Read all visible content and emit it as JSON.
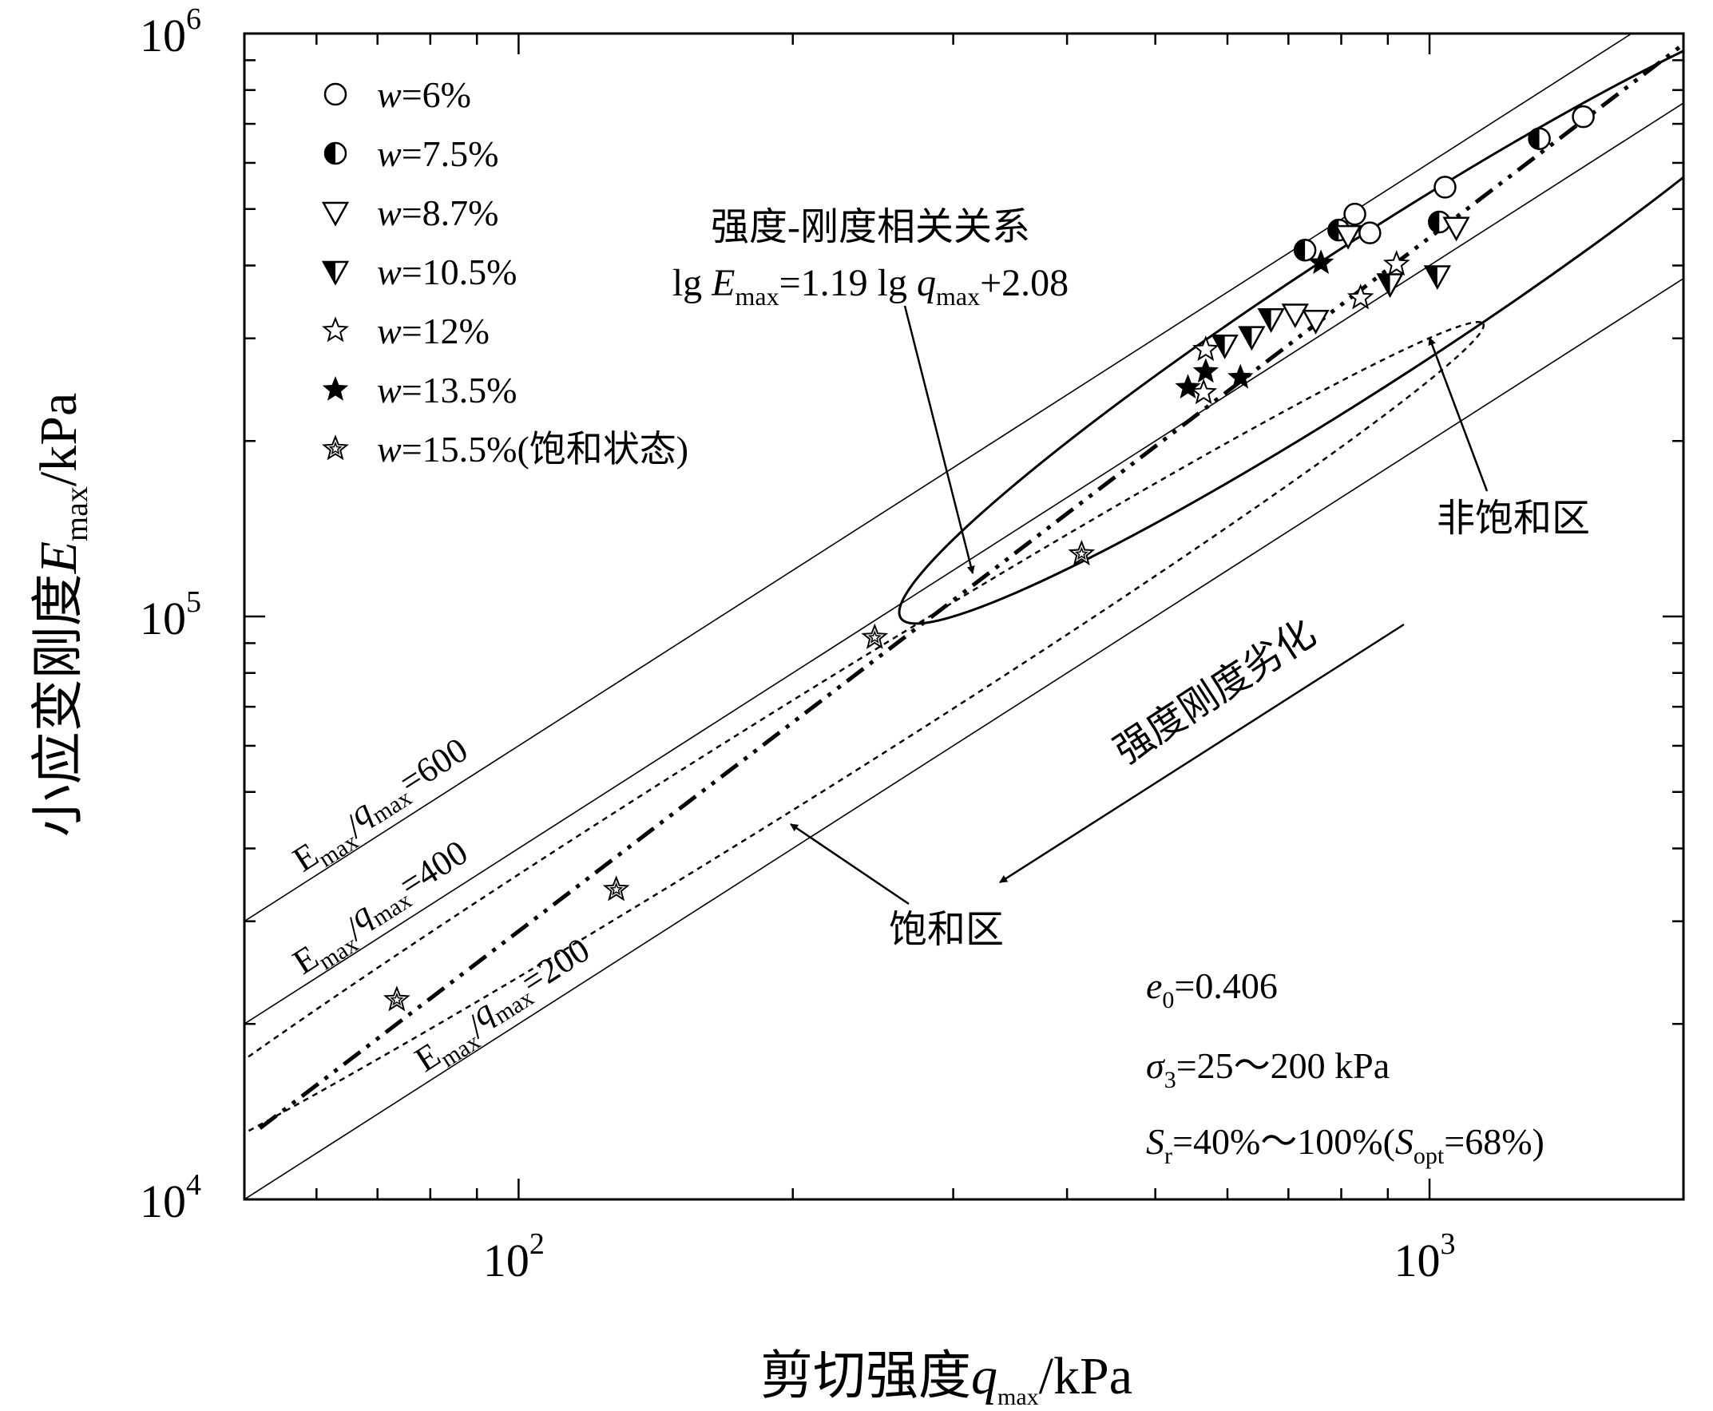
{
  "chart_data": {
    "type": "scatter",
    "x_scale": "log",
    "y_scale": "log",
    "xlim": [
      50,
      1900
    ],
    "ylim": [
      10000,
      1000000
    ],
    "xlabel": "剪切强度q_max/kPa",
    "ylabel": "小应变刚度E_max/kPa",
    "x_ticks": [
      {
        "value": 100,
        "base": "10",
        "exp": "2"
      },
      {
        "value": 1000,
        "base": "10",
        "exp": "3"
      }
    ],
    "y_ticks": [
      {
        "value": 10000,
        "base": "10",
        "exp": "4"
      },
      {
        "value": 100000,
        "base": "10",
        "exp": "5"
      },
      {
        "value": 1000000,
        "base": "10",
        "exp": "6"
      }
    ],
    "legend_position": "top-left",
    "series": [
      {
        "name": "w=6%",
        "marker": "circle-open",
        "points": [
          [
            828,
            490000
          ],
          [
            860,
            455000
          ],
          [
            1040,
            545000
          ],
          [
            1475,
            720000
          ]
        ]
      },
      {
        "name": "w=7.5%",
        "marker": "circle-half",
        "points": [
          [
            730,
            425000
          ],
          [
            795,
            460000
          ],
          [
            1025,
            475000
          ],
          [
            1320,
            660000
          ]
        ]
      },
      {
        "name": "w=8.7%",
        "marker": "triangle-down-open",
        "points": [
          [
            712,
            330000
          ],
          [
            750,
            322000
          ],
          [
            814,
            450000
          ],
          [
            1070,
            465000
          ]
        ]
      },
      {
        "name": "w=10.5%",
        "marker": "triangle-down-half",
        "points": [
          [
            596,
            292000
          ],
          [
            638,
            302000
          ],
          [
            670,
            324000
          ],
          [
            905,
            372000
          ],
          [
            1020,
            384000
          ]
        ]
      },
      {
        "name": "w=12%",
        "marker": "star-open",
        "points": [
          [
            568,
            287000
          ],
          [
            565,
            242000
          ],
          [
            840,
            352000
          ],
          [
            920,
            402000
          ]
        ]
      },
      {
        "name": "w=13.5%",
        "marker": "star-filled",
        "points": [
          [
            543,
            247000
          ],
          [
            568,
            263000
          ],
          [
            620,
            257000
          ],
          [
            760,
            404000
          ]
        ]
      },
      {
        "name": "w=15.5%(饱和状态)",
        "marker": "star-crossed",
        "points": [
          [
            73.5,
            22000
          ],
          [
            128,
            34000
          ],
          [
            246,
            92000
          ],
          [
            415,
            128000
          ]
        ]
      }
    ],
    "fit_line": {
      "label": "lg E_max=1.19 lg q_max+2.08",
      "slope": 1.19,
      "intercept": 2.08,
      "x_range": [
        52,
        1880
      ]
    },
    "reference_lines": [
      {
        "ratio": 600,
        "label_num": "=600",
        "label_pos_x": 72
      },
      {
        "ratio": 400,
        "label_num": "=400",
        "label_pos_x": 72
      },
      {
        "ratio": 200,
        "label_num": "=200",
        "label_pos_x": 98
      }
    ],
    "regions": [
      {
        "name": "非饱和区",
        "style": "solid",
        "cx": 870,
        "cy": 335000,
        "rx_dec": 0.62,
        "ry_dec": 0.12,
        "angle_deg": 33
      },
      {
        "name": "饱和区",
        "style": "dashed",
        "cx": 190,
        "cy": 55000,
        "rx_dec": 0.92,
        "ry_dec": 0.08,
        "angle_deg": 32
      }
    ],
    "annotations": {
      "relation_title": "强度-刚度相关关系",
      "degradation": "强度刚度劣化"
    },
    "params": {
      "e0": "=0.406",
      "sigma3": "=25～200 kPa",
      "sr_a": "=40%～100%(",
      "sr_b": "=68%)"
    }
  }
}
